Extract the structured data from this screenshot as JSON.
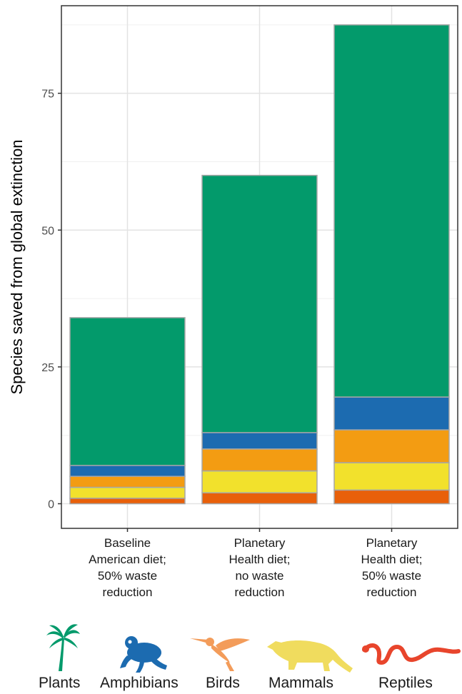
{
  "chart_data": {
    "type": "bar",
    "stacked": true,
    "categories": [
      [
        "Baseline",
        "American diet;",
        "50% waste",
        "reduction"
      ],
      [
        "Planetary",
        "Health diet;",
        "no waste",
        "reduction"
      ],
      [
        "Planetary",
        "Health diet;",
        "50% waste",
        "reduction"
      ]
    ],
    "series": [
      {
        "name": "Reptiles",
        "color": "#e8600a",
        "values": [
          1,
          2,
          2.5
        ]
      },
      {
        "name": "Mammals",
        "color": "#f2e12c",
        "values": [
          2,
          4,
          5
        ]
      },
      {
        "name": "Birds",
        "color": "#f39c12",
        "values": [
          2,
          4,
          6
        ]
      },
      {
        "name": "Amphibians",
        "color": "#1c6bb0",
        "values": [
          2,
          3,
          6
        ]
      },
      {
        "name": "Plants",
        "color": "#039a6b",
        "values": [
          27,
          47,
          68
        ]
      }
    ],
    "ylabel": "Species saved from global extinction",
    "xlabel": "",
    "yticks": [
      0,
      25,
      50,
      75
    ],
    "ylim": [
      -4.5,
      91
    ],
    "grid": true,
    "legend_position": "bottom"
  },
  "legend": {
    "items": [
      {
        "label": "Plants",
        "icon": "palm-tree-icon",
        "color": "#039a6b"
      },
      {
        "label": "Amphibians",
        "icon": "frog-icon",
        "color": "#1c6bb0"
      },
      {
        "label": "Birds",
        "icon": "hummingbird-icon",
        "color": "#f39c5a"
      },
      {
        "label": "Mammals",
        "icon": "civet-icon",
        "color": "#f0dc5e"
      },
      {
        "label": "Reptiles",
        "icon": "snake-icon",
        "color": "#e8452c"
      }
    ]
  }
}
